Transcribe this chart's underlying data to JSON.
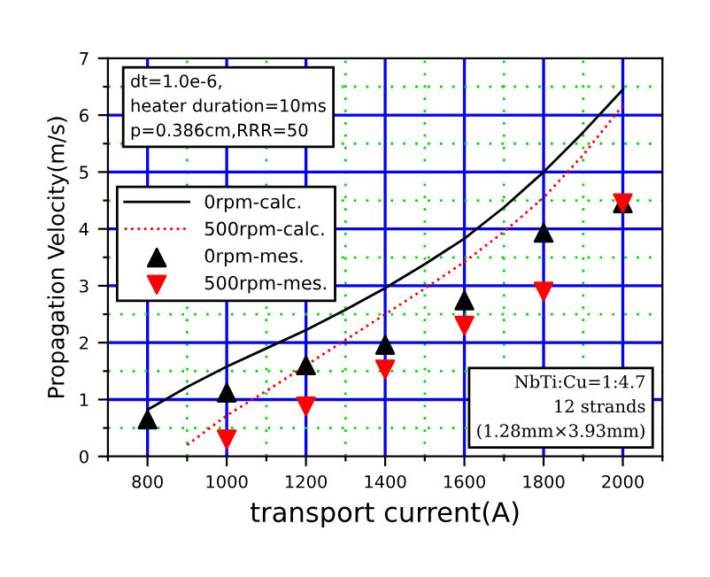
{
  "chart_data": {
    "type": "line",
    "xlabel": "transport current(A)",
    "ylabel": "Propagation Velocity(m/s)",
    "xlim": [
      700,
      2100
    ],
    "xticks": [
      {
        "value": 700,
        "label": null
      },
      800,
      {
        "value": 900,
        "label": null
      },
      1000,
      {
        "value": 1100,
        "label": null
      },
      1200,
      {
        "value": 1300,
        "label": null
      },
      1400,
      {
        "value": 1500,
        "label": null
      },
      1600,
      {
        "value": 1700,
        "label": null
      },
      1800,
      {
        "value": 1900,
        "label": null
      },
      2000,
      {
        "value": 2100,
        "label": null
      }
    ],
    "ylim": [
      0,
      7
    ],
    "yticks": [
      0,
      {
        "value": 0.5,
        "label": null
      },
      1,
      {
        "value": 1.5,
        "label": null
      },
      2,
      {
        "value": 2.5,
        "label": null
      },
      3,
      {
        "value": 3.5,
        "label": null
      },
      4,
      {
        "value": 4.5,
        "label": null
      },
      5,
      {
        "value": 5.5,
        "label": null
      },
      6,
      {
        "value": 6.5,
        "label": null
      },
      7
    ],
    "grid": true,
    "legend": "top left",
    "annotations": [
      "dt=1.0e-6,\nheater duration=10ms\np=0.386cm,RRR=50",
      "NbTi:Cu=1:4.7\n12 strands\n(1.28mm×3.93mm)"
    ],
    "series": [
      {
        "name": "0rpm-calc.",
        "color": "#000000",
        "line_style": "solid",
        "marker": "none",
        "x": [
          800,
          900,
          1000,
          1100,
          1200,
          1300,
          1400,
          1500,
          1600,
          1700,
          1800,
          1900,
          2000
        ],
        "values": [
          0.82,
          1.22,
          1.58,
          1.9,
          2.22,
          2.58,
          2.96,
          3.38,
          3.83,
          4.38,
          5.0,
          5.7,
          6.45
        ]
      },
      {
        "name": "500rpm-calc.",
        "color": "#ff0000",
        "line_style": "dotted",
        "marker": "none",
        "x": [
          900,
          1000,
          1100,
          1200,
          1300,
          1400,
          1500,
          1600,
          1700,
          1800,
          1900,
          2000
        ],
        "values": [
          0.2,
          0.72,
          1.15,
          1.6,
          2.05,
          2.5,
          2.95,
          3.42,
          3.95,
          4.55,
          5.3,
          6.17
        ]
      },
      {
        "name": "0rpm-mes.",
        "type": "scatter",
        "color": "#000000",
        "marker": "triangle",
        "x": [
          800,
          1000,
          1200,
          1400,
          1600,
          1800,
          2000
        ],
        "values": [
          0.65,
          1.12,
          1.6,
          1.96,
          2.74,
          3.93,
          4.45
        ]
      },
      {
        "name": "500rpm-mes.",
        "type": "scatter",
        "color": "#ff0000",
        "marker": "triangle-down",
        "x": [
          1000,
          1200,
          1400,
          1600,
          1800,
          2000
        ],
        "values": [
          0.3,
          0.88,
          1.53,
          2.3,
          2.9,
          4.45
        ]
      }
    ]
  }
}
